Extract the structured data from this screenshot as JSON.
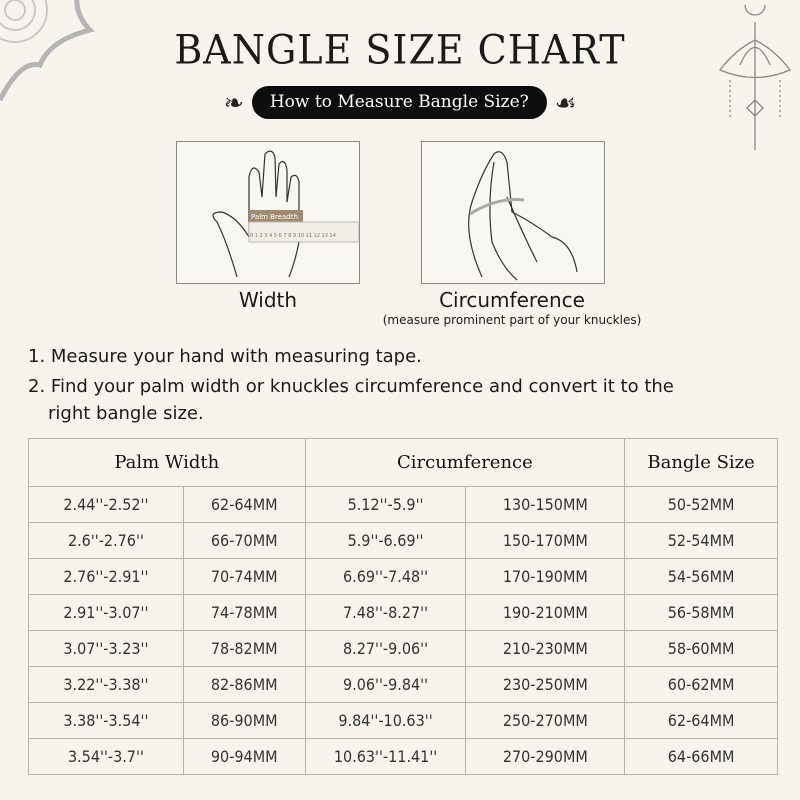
{
  "title": "BANGLE SIZE CHART",
  "subtitle": "How to Measure Bangle Size?",
  "images": {
    "width_label": "Width",
    "ruler_label": "Palm Breadth",
    "ruler_numbers": "0 1 2 3 4 5 6 7 8 9 10 11 12 13 14",
    "circumference_label": "Circumference",
    "circumference_note": "(measure prominent part of your knuckles)"
  },
  "steps": [
    "1. Measure your hand with measuring tape.",
    "2. Find your palm width or knuckles circumference and convert it to the",
    "right bangle size."
  ],
  "table": {
    "headers": [
      "Palm Width",
      "Circumference",
      "Bangle Size"
    ],
    "rows": [
      [
        "2.44''-2.52''",
        "62-64MM",
        "5.12''-5.9''",
        "130-150MM",
        "50-52MM"
      ],
      [
        "2.6''-2.76''",
        "66-70MM",
        "5.9''-6.69''",
        "150-170MM",
        "52-54MM"
      ],
      [
        "2.76''-2.91''",
        "70-74MM",
        "6.69''-7.48''",
        "170-190MM",
        "54-56MM"
      ],
      [
        "2.91''-3.07''",
        "74-78MM",
        "7.48''-8.27''",
        "190-210MM",
        "56-58MM"
      ],
      [
        "3.07''-3.23''",
        "78-82MM",
        "8.27''-9.06''",
        "210-230MM",
        "58-60MM"
      ],
      [
        "3.22''-3.38''",
        "82-86MM",
        "9.06''-9.84''",
        "230-250MM",
        "60-62MM"
      ],
      [
        "3.38''-3.54''",
        "86-90MM",
        "9.84''-10.63''",
        "250-270MM",
        "62-64MM"
      ],
      [
        "3.54''-3.7''",
        "90-94MM",
        "10.63''-11.41''",
        "270-290MM",
        "64-66MM"
      ]
    ]
  },
  "colors": {
    "background": "#f7f4ee",
    "pill": "#0d0d0d",
    "ruler_tag": "#a08a70"
  }
}
